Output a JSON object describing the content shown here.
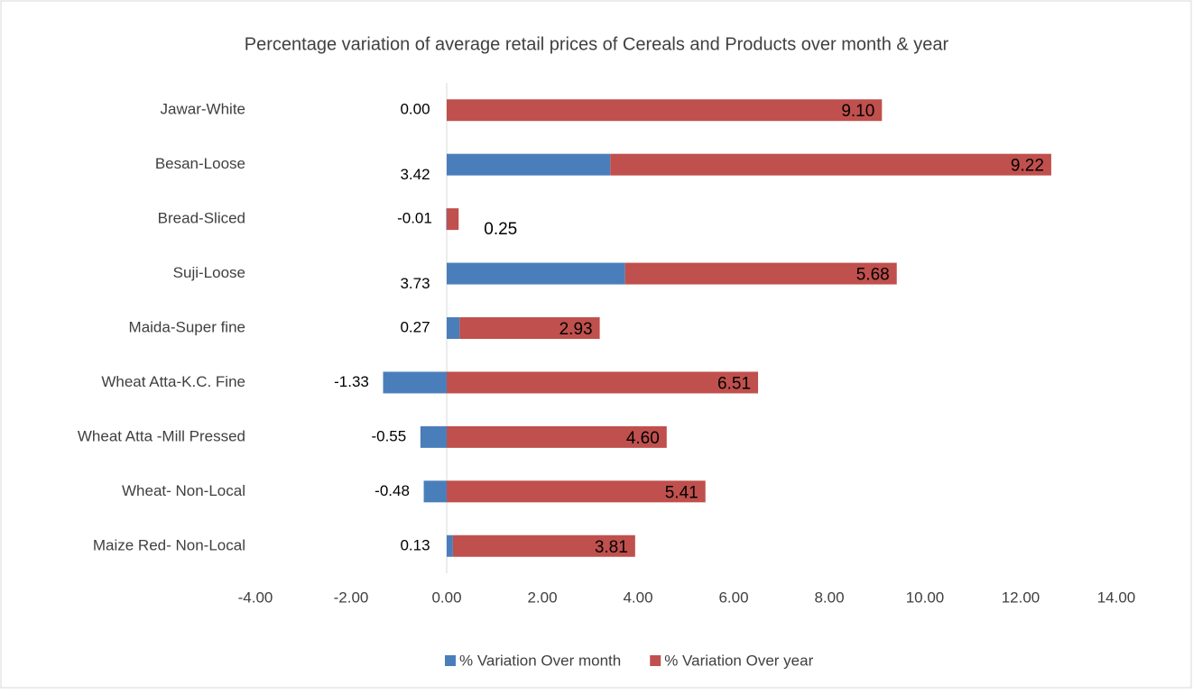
{
  "chart_data": {
    "type": "stacked-bar-horizontal",
    "title": "Percentage variation of average retail prices of Cereals and Products over month & year",
    "categories": [
      "Jawar-White",
      "Besan-Loose",
      "Bread-Sliced",
      "Suji-Loose",
      "Maida-Super fine",
      "Wheat Atta-K.C. Fine",
      "Wheat Atta -Mill Pressed",
      "Wheat- Non-Local",
      "Maize Red- Non-Local"
    ],
    "series": [
      {
        "name": "% Variation Over month",
        "color": "#4a7ebb",
        "values": [
          0,
          3.42,
          -0.01,
          3.73,
          0.27,
          -1.33,
          -0.55,
          -0.48,
          0.13
        ],
        "value_labels": [
          "0.00",
          "3.42",
          "-0.01",
          "3.73",
          "0.27",
          "-1.33",
          "-0.55",
          "-0.48",
          "0.13"
        ]
      },
      {
        "name": "% Variation Over year",
        "color": "#c0504d",
        "values": [
          9.1,
          9.22,
          0.25,
          5.68,
          2.93,
          6.51,
          4.6,
          5.41,
          3.81
        ],
        "value_labels": [
          "9.10",
          "9.22",
          "0.25",
          "5.68",
          "2.93",
          "6.51",
          "4.60",
          "5.41",
          "3.81"
        ]
      }
    ],
    "xlim": [
      -4,
      14
    ],
    "xticks": [
      {
        "value": -4,
        "label": "-4.00"
      },
      {
        "value": -2,
        "label": "-2.00"
      },
      {
        "value": 0,
        "label": "0.00"
      },
      {
        "value": 2,
        "label": "2.00"
      },
      {
        "value": 4,
        "label": "4.00"
      },
      {
        "value": 6,
        "label": "6.00"
      },
      {
        "value": 8,
        "label": "8.00"
      },
      {
        "value": 10,
        "label": "10.00"
      },
      {
        "value": 12,
        "label": "12.00"
      },
      {
        "value": 14,
        "label": "14.00"
      }
    ],
    "legend": "bottom"
  }
}
